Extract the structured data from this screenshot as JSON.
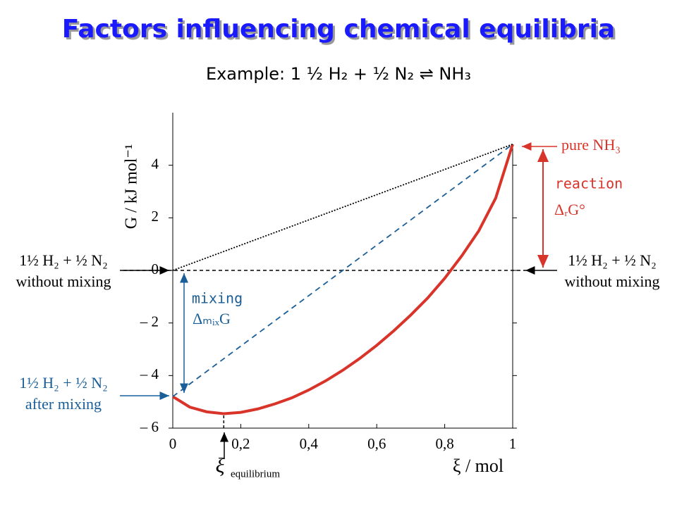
{
  "chart_data": {
    "type": "line",
    "title": "Factors influencing chemical equilibria",
    "subtitle": "Example: 1 ½ H₂ + ½ N₂ ⇌ NH₃",
    "x_label": "ξ / mol",
    "y_label": "G / kJ mol⁻¹",
    "xlim": [
      0,
      1
    ],
    "ylim": [
      -6,
      6
    ],
    "xticks": [
      {
        "value": 0,
        "label": "0"
      },
      {
        "value": 0.2,
        "label": "0,2"
      },
      {
        "value": 0.4,
        "label": "0,4"
      },
      {
        "value": 0.6,
        "label": "0,6"
      },
      {
        "value": 0.8,
        "label": "0,8"
      },
      {
        "value": 1,
        "label": "1"
      }
    ],
    "yticks": [
      {
        "value": -6,
        "label": "– 6"
      },
      {
        "value": -4,
        "label": "– 4"
      },
      {
        "value": -2,
        "label": "– 2"
      },
      0,
      2,
      4
    ],
    "series": [
      {
        "color": "#d8342a",
        "style": "solid",
        "x": [
          0,
          0.05,
          0.1,
          0.15,
          0.2,
          0.25,
          0.3,
          0.35,
          0.4,
          0.45,
          0.5,
          0.55,
          0.6,
          0.65,
          0.7,
          0.75,
          0.8,
          0.85,
          0.9,
          0.95,
          1
        ],
        "values": [
          -4.8,
          -5.2,
          -5.38,
          -5.45,
          -5.4,
          -5.27,
          -5.08,
          -4.85,
          -4.55,
          -4.2,
          -3.8,
          -3.35,
          -2.85,
          -2.3,
          -1.7,
          -1.05,
          -0.3,
          0.55,
          1.5,
          2.75,
          4.8
        ]
      },
      {
        "color": "#1a5e98",
        "style": "dashed",
        "x": [
          0,
          1
        ],
        "values": [
          -4.8,
          4.8
        ]
      },
      {
        "color": "#000000",
        "style": "dotted",
        "x": [
          0,
          1
        ],
        "values": [
          0,
          4.8
        ]
      }
    ],
    "equilibrium_xi": 0.15,
    "annotations": {
      "reactants": "1½ H₂ + ½ N₂",
      "without_mixing": "without mixing",
      "after_mixing": "after mixing",
      "pure": "pure NH₃",
      "reaction": "reaction",
      "reaction_symbol": "ΔᵣG°",
      "mixing": "mixing",
      "mixing_symbol": "ΔₘᵢₓG",
      "xi": "ξ",
      "equilibrium": "equilibrium"
    }
  }
}
